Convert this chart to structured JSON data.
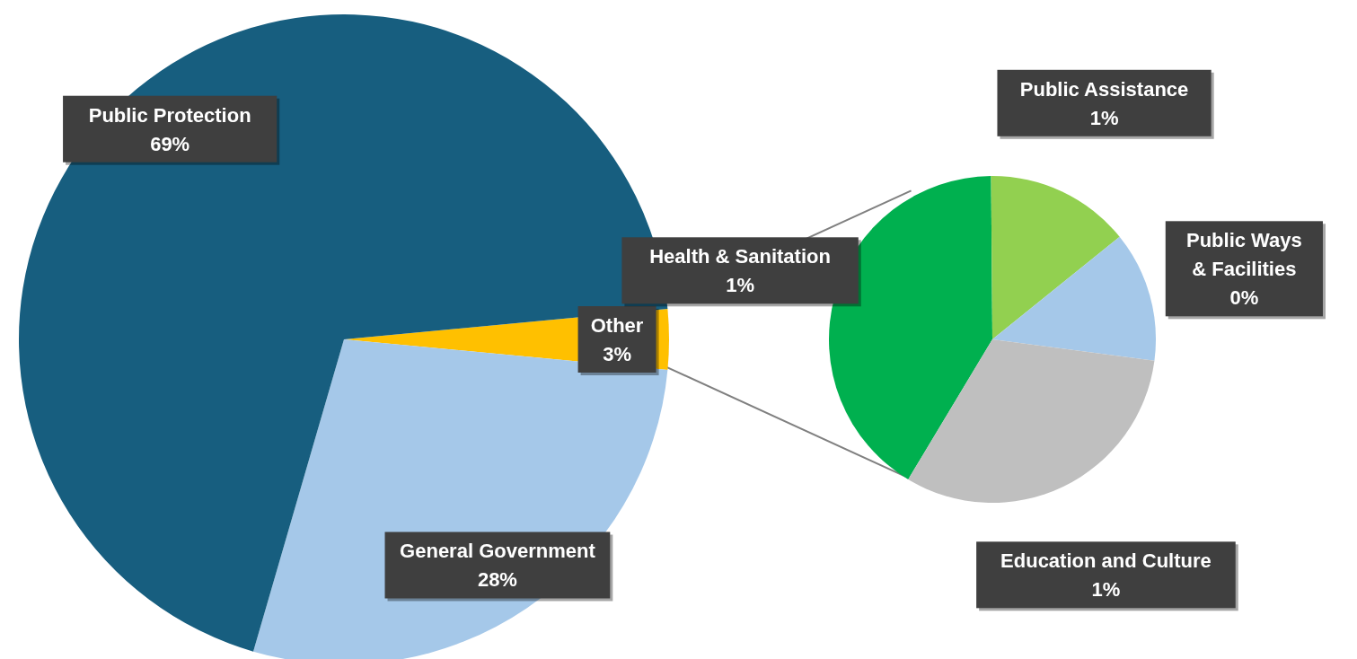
{
  "chart_data": [
    {
      "type": "pie",
      "categories": [
        "Other",
        "General Government",
        "Public Protection"
      ],
      "values": [
        3,
        28,
        69
      ],
      "colors": [
        "#ffc000",
        "#a5c8e9",
        "#175e7f"
      ],
      "value_labels": [
        "3%",
        "28%",
        "69%"
      ],
      "legend": false
    },
    {
      "type": "pie",
      "categories": [
        "Health & Sanitation",
        "Public Assistance",
        "Public Ways & Facilities",
        "Education and Culture"
      ],
      "values": [
        1.44,
        0.5,
        0.45,
        1.1
      ],
      "colors": [
        "#00b04f",
        "#92d050",
        "#a5c8e9",
        "#bfbfbf"
      ],
      "value_labels": [
        "1%",
        "1%",
        "0%",
        "1%"
      ],
      "legend": false
    }
  ]
}
